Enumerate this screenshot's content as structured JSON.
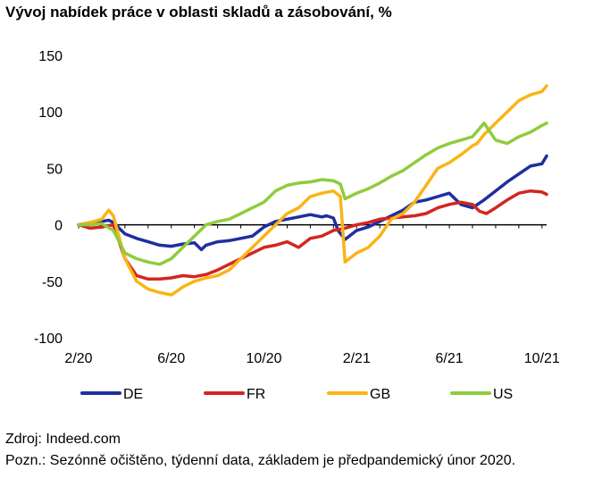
{
  "colors": {
    "DE": "#1f2f9e",
    "FR": "#d3261f",
    "GB": "#fbb416",
    "US": "#8fcc3c",
    "zero": "#000000",
    "tick": "#000000"
  },
  "footer": {
    "source": "Zdroj: Indeed.com",
    "note": "Pozn.: Sezónně očištěno, týdenní data, základem je předpandemický únor 2020."
  },
  "chart_data": {
    "type": "line",
    "title": "Vývoj nabídek práce v oblasti skladů a zásobování, %",
    "xlabel": "",
    "ylabel": "",
    "ylim": [
      -100,
      150
    ],
    "yticks": [
      -100,
      -50,
      0,
      50,
      100,
      150
    ],
    "xlim": [
      0,
      20.2
    ],
    "xticks": [
      {
        "x": 0,
        "label": "2/20"
      },
      {
        "x": 4,
        "label": "6/20"
      },
      {
        "x": 8,
        "label": "10/20"
      },
      {
        "x": 12,
        "label": "2/21"
      },
      {
        "x": 16,
        "label": "6/21"
      },
      {
        "x": 20,
        "label": "10/21"
      }
    ],
    "grid": false,
    "legend": "bottom",
    "series": [
      {
        "name": "DE",
        "x": [
          0,
          0.5,
          1,
          1.3,
          1.5,
          2,
          2.5,
          3,
          3.5,
          4,
          4.5,
          5,
          5.3,
          5.5,
          6,
          6.5,
          7,
          7.5,
          8,
          8.5,
          9,
          9.5,
          10,
          10.5,
          10.7,
          11,
          11.2,
          11.5,
          12,
          12.5,
          13,
          13.5,
          14,
          14.5,
          15,
          15.5,
          16,
          16.3,
          16.5,
          17,
          17.5,
          18,
          18.5,
          19,
          19.5,
          20,
          20.2
        ],
        "y": [
          0,
          2,
          3,
          4,
          2,
          -8,
          -12,
          -15,
          -18,
          -19,
          -17,
          -16,
          -22,
          -18,
          -15,
          -14,
          -12,
          -10,
          -2,
          3,
          5,
          7,
          9,
          7,
          8,
          6,
          -5,
          -13,
          -5,
          -2,
          3,
          8,
          13,
          20,
          22,
          25,
          28,
          22,
          18,
          15,
          22,
          30,
          38,
          45,
          52,
          54,
          61
        ]
      },
      {
        "name": "FR",
        "x": [
          0,
          0.5,
          1,
          1.5,
          2,
          2.5,
          3,
          3.5,
          4,
          4.5,
          5,
          5.5,
          6,
          6.5,
          7,
          7.5,
          8,
          8.5,
          9,
          9.5,
          10,
          10.5,
          11,
          11.5,
          12,
          12.5,
          13,
          13.5,
          14,
          14.5,
          15,
          15.5,
          16,
          16.5,
          17,
          17.3,
          17.6,
          18,
          18.5,
          19,
          19.5,
          20,
          20.2
        ],
        "y": [
          0,
          -3,
          -2,
          0,
          -30,
          -45,
          -48,
          -48,
          -47,
          -45,
          -46,
          -44,
          -40,
          -35,
          -30,
          -25,
          -20,
          -18,
          -15,
          -20,
          -12,
          -10,
          -5,
          -3,
          0,
          2,
          5,
          6,
          7,
          8,
          10,
          15,
          18,
          20,
          18,
          12,
          10,
          15,
          22,
          28,
          30,
          29,
          27
        ]
      },
      {
        "name": "GB",
        "x": [
          0,
          0.5,
          1,
          1.3,
          1.5,
          2,
          2.5,
          3,
          3.5,
          4,
          4.3,
          4.5,
          5,
          5.5,
          6,
          6.5,
          7,
          7.5,
          8,
          8.5,
          9,
          9.5,
          10,
          10.5,
          11,
          11.3,
          11.5,
          12,
          12.5,
          13,
          13.5,
          14,
          14.5,
          15,
          15.5,
          16,
          16.5,
          17,
          17.2,
          17.5,
          18,
          18.5,
          19,
          19.5,
          20,
          20.2
        ],
        "y": [
          0,
          2,
          5,
          13,
          8,
          -30,
          -50,
          -57,
          -60,
          -62,
          -58,
          -55,
          -50,
          -47,
          -45,
          -40,
          -30,
          -20,
          -10,
          0,
          10,
          15,
          25,
          28,
          30,
          25,
          -33,
          -25,
          -20,
          -10,
          5,
          10,
          20,
          35,
          50,
          55,
          62,
          70,
          72,
          80,
          90,
          100,
          110,
          115,
          118,
          123
        ]
      },
      {
        "name": "US",
        "x": [
          0,
          0.5,
          1,
          1.5,
          2,
          2.5,
          3,
          3.5,
          4,
          4.5,
          5,
          5.5,
          6,
          6.5,
          7,
          7.5,
          8,
          8.5,
          9,
          9.5,
          10,
          10.5,
          11,
          11.3,
          11.5,
          12,
          12.5,
          13,
          13.5,
          14,
          14.5,
          15,
          15.5,
          16,
          16.5,
          17,
          17.5,
          18,
          18.5,
          19,
          19.5,
          20,
          20.2
        ],
        "y": [
          0,
          0,
          1,
          -5,
          -25,
          -30,
          -33,
          -35,
          -30,
          -20,
          -10,
          0,
          3,
          5,
          10,
          15,
          20,
          30,
          35,
          37,
          38,
          40,
          39,
          36,
          23,
          28,
          32,
          37,
          43,
          48,
          55,
          62,
          68,
          72,
          75,
          78,
          90,
          75,
          72,
          78,
          82,
          88,
          90
        ]
      }
    ]
  }
}
